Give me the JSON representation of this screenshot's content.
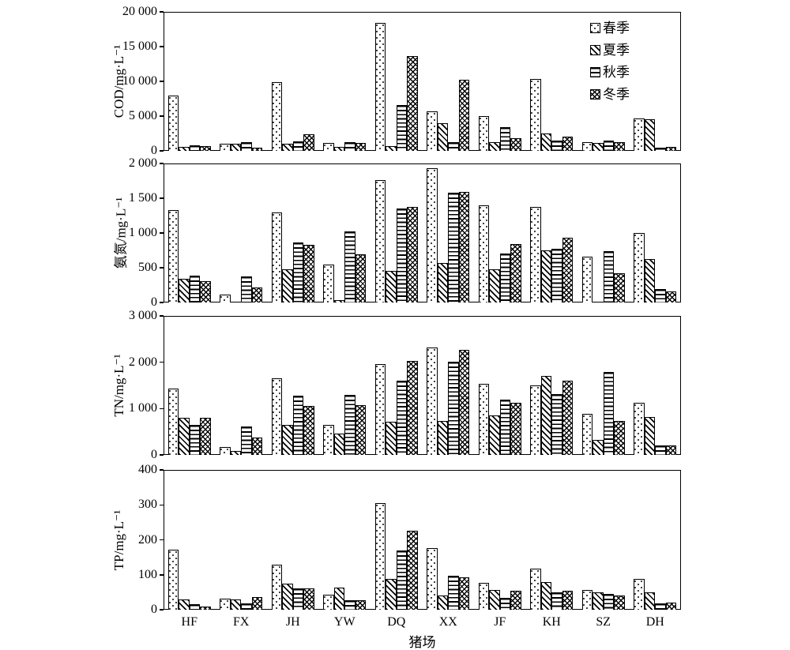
{
  "figure": {
    "xlabel": "猪场",
    "categories": [
      "HF",
      "FX",
      "JH",
      "YW",
      "DQ",
      "XX",
      "JF",
      "KH",
      "SZ",
      "DH"
    ],
    "legend": [
      {
        "label": "春季",
        "pattern": "dots"
      },
      {
        "label": "夏季",
        "pattern": "diag"
      },
      {
        "label": "秋季",
        "pattern": "horiz"
      },
      {
        "label": "冬季",
        "pattern": "cross"
      }
    ],
    "bar_color": "#ffffff",
    "line_color": "#000000"
  },
  "chart_data": [
    {
      "type": "bar",
      "id": "cod",
      "ylabel": "COD/mg·L⁻¹",
      "ylim": [
        0,
        20000
      ],
      "yticks": [
        0,
        5000,
        10000,
        15000,
        20000
      ],
      "ytick_labels": [
        "0",
        "5 000",
        "10 000",
        "15 000",
        "20 000"
      ],
      "categories": [
        "HF",
        "FX",
        "JH",
        "YW",
        "DQ",
        "XX",
        "JF",
        "KH",
        "SZ",
        "DH"
      ],
      "series": [
        {
          "name": "春季",
          "values": [
            7900,
            1000,
            9900,
            1100,
            18400,
            5700,
            5000,
            10300,
            1300,
            4700
          ]
        },
        {
          "name": "夏季",
          "values": [
            600,
            1000,
            1000,
            600,
            700,
            4000,
            1300,
            2500,
            1100,
            4500
          ]
        },
        {
          "name": "秋季",
          "values": [
            800,
            1200,
            1400,
            1250,
            6600,
            1300,
            3400,
            1500,
            1500,
            400
          ]
        },
        {
          "name": "冬季",
          "values": [
            700,
            500,
            2400,
            1100,
            13600,
            10200,
            1800,
            2100,
            1200,
            600
          ]
        }
      ],
      "legend_position": "upper right",
      "grid": false
    },
    {
      "type": "bar",
      "id": "nh3n",
      "ylabel": "氨氮/mg·L⁻¹",
      "ylim": [
        0,
        2000
      ],
      "yticks": [
        0,
        500,
        1000,
        1500,
        2000
      ],
      "ytick_labels": [
        "0",
        "500",
        "1 000",
        "1 500",
        "2 000"
      ],
      "categories": [
        "HF",
        "FX",
        "JH",
        "YW",
        "DQ",
        "XX",
        "JF",
        "KH",
        "SZ",
        "DH"
      ],
      "series": [
        {
          "name": "春季",
          "values": [
            1330,
            110,
            1300,
            540,
            1760,
            1930,
            1400,
            1370,
            660,
            1000
          ]
        },
        {
          "name": "夏季",
          "values": [
            340,
            0,
            480,
            30,
            460,
            570,
            480,
            750,
            0,
            620
          ]
        },
        {
          "name": "秋季",
          "values": [
            390,
            380,
            860,
            1020,
            1350,
            1580,
            700,
            770,
            740,
            190
          ]
        },
        {
          "name": "冬季",
          "values": [
            310,
            220,
            830,
            690,
            1370,
            1590,
            840,
            930,
            420,
            160
          ]
        }
      ],
      "grid": false
    },
    {
      "type": "bar",
      "id": "tn",
      "ylabel": "TN/mg·L⁻¹",
      "ylim": [
        0,
        3000
      ],
      "yticks": [
        0,
        1000,
        2000,
        3000
      ],
      "ytick_labels": [
        "0",
        "1 000",
        "2 000",
        "3 000"
      ],
      "categories": [
        "HF",
        "FX",
        "JH",
        "YW",
        "DQ",
        "XX",
        "JF",
        "KH",
        "SZ",
        "DH"
      ],
      "series": [
        {
          "name": "春季",
          "values": [
            1430,
            170,
            1650,
            650,
            1960,
            2320,
            1530,
            1500,
            890,
            1130
          ]
        },
        {
          "name": "夏季",
          "values": [
            800,
            90,
            640,
            460,
            720,
            740,
            850,
            1710,
            320,
            810
          ]
        },
        {
          "name": "秋季",
          "values": [
            650,
            620,
            1280,
            1290,
            1600,
            2010,
            1200,
            1320,
            1790,
            210
          ]
        },
        {
          "name": "冬季",
          "values": [
            800,
            370,
            1060,
            1080,
            2030,
            2260,
            1130,
            1600,
            730,
            210
          ]
        }
      ],
      "grid": false
    },
    {
      "type": "bar",
      "id": "tp",
      "ylabel": "TP/mg·L⁻¹",
      "ylim": [
        0,
        400
      ],
      "yticks": [
        0,
        100,
        200,
        300,
        400
      ],
      "ytick_labels": [
        "0",
        "100",
        "200",
        "300",
        "400"
      ],
      "categories": [
        "HF",
        "FX",
        "JH",
        "YW",
        "DQ",
        "XX",
        "JF",
        "KH",
        "SZ",
        "DH"
      ],
      "series": [
        {
          "name": "春季",
          "values": [
            172,
            31,
            128,
            42,
            305,
            177,
            77,
            118,
            57,
            88
          ]
        },
        {
          "name": "夏季",
          "values": [
            30,
            30,
            74,
            63,
            88,
            40,
            57,
            80,
            50,
            50
          ]
        },
        {
          "name": "秋季",
          "values": [
            16,
            17,
            60,
            26,
            170,
            98,
            33,
            50,
            45,
            19
          ]
        },
        {
          "name": "冬季",
          "values": [
            10,
            37,
            60,
            26,
            227,
            93,
            55,
            54,
            41,
            20
          ]
        }
      ],
      "grid": false
    }
  ]
}
